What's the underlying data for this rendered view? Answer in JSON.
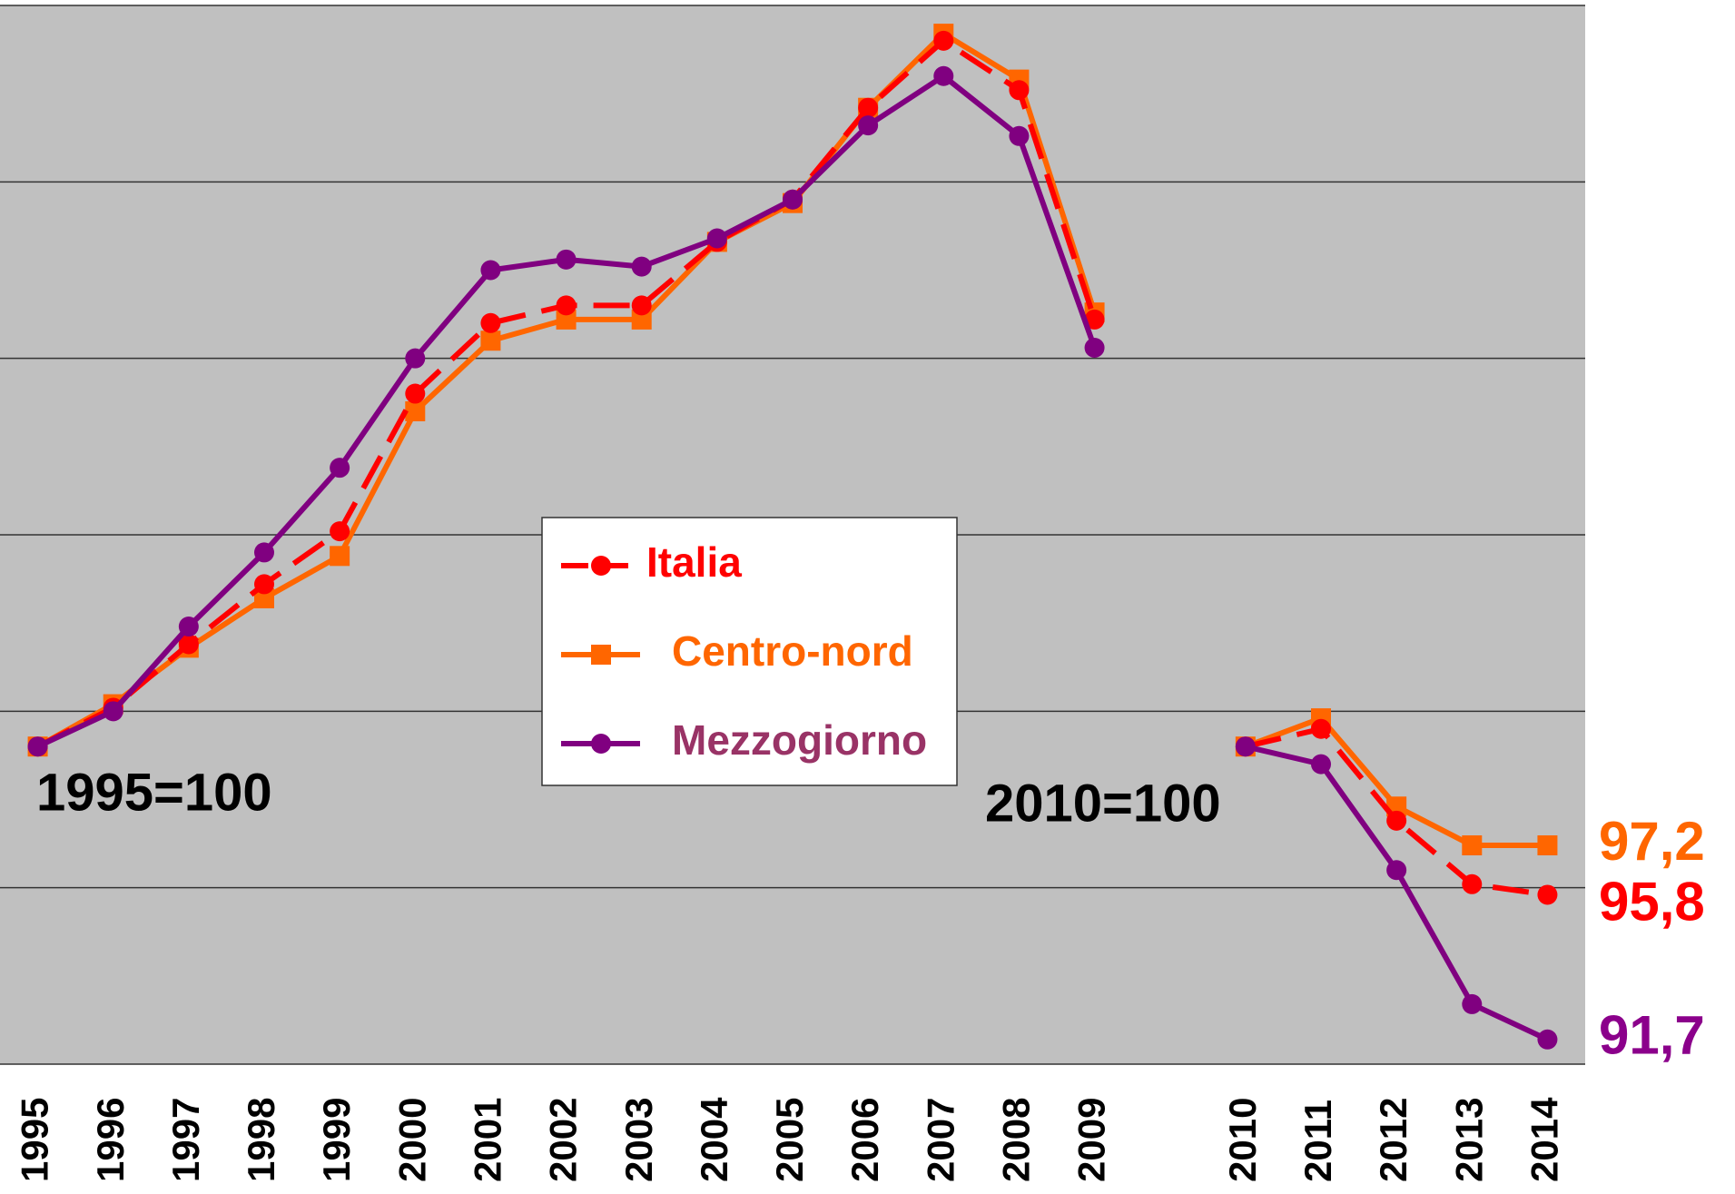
{
  "chart_data": {
    "type": "line",
    "categories": [
      "1995",
      "1996",
      "1997",
      "1998",
      "1999",
      "2000",
      "2001",
      "2002",
      "2003",
      "2004",
      "2005",
      "2006",
      "2007",
      "2008",
      "2009",
      null,
      "2010",
      "2011",
      "2012",
      "2013",
      "2014"
    ],
    "series": [
      {
        "name": "Italia",
        "color": "#ff0000",
        "legend_color": "#ff0000",
        "marker": "circle",
        "dashed": true,
        "values": [
          100,
          101.1,
          102.9,
          104.6,
          106.1,
          110.0,
          112.0,
          112.5,
          112.5,
          114.3,
          115.5,
          118.1,
          120.0,
          118.6,
          112.1,
          null,
          100,
          100.5,
          97.9,
          96.1,
          95.8
        ],
        "value_labels": [
          null,
          null,
          null,
          null,
          null,
          null,
          null,
          null,
          null,
          null,
          null,
          null,
          null,
          null,
          null,
          null,
          null,
          null,
          null,
          null,
          "95,8"
        ]
      },
      {
        "name": "Centro-nord",
        "color": "#ff6600",
        "legend_color": "#ff6600",
        "marker": "square",
        "dashed": false,
        "values": [
          100,
          101.2,
          102.8,
          104.2,
          105.4,
          109.5,
          111.5,
          112.1,
          112.1,
          114.3,
          115.4,
          118.1,
          120.2,
          118.9,
          112.3,
          null,
          100,
          100.8,
          98.3,
          97.2,
          97.2
        ],
        "value_labels": [
          null,
          null,
          null,
          null,
          null,
          null,
          null,
          null,
          null,
          null,
          null,
          null,
          null,
          null,
          null,
          null,
          null,
          null,
          null,
          null,
          "97,2"
        ]
      },
      {
        "name": "Mezzogiorno",
        "color": "#800080",
        "legend_color": "#993366",
        "marker": "circle",
        "dashed": false,
        "values": [
          100,
          101.0,
          103.4,
          105.5,
          107.9,
          111.0,
          113.5,
          113.8,
          113.6,
          114.4,
          115.5,
          117.6,
          119.0,
          117.3,
          111.3,
          null,
          100,
          99.5,
          96.5,
          92.7,
          91.7
        ],
        "value_labels": [
          null,
          null,
          null,
          null,
          null,
          null,
          null,
          null,
          null,
          null,
          null,
          null,
          null,
          null,
          null,
          null,
          null,
          null,
          null,
          null,
          "91,7"
        ]
      }
    ],
    "annotations": [
      "1995=100",
      "2010=100"
    ],
    "ylim": [
      91,
      121
    ],
    "yticks": [
      91,
      96,
      101,
      106,
      111,
      116,
      121
    ],
    "grid": true
  }
}
